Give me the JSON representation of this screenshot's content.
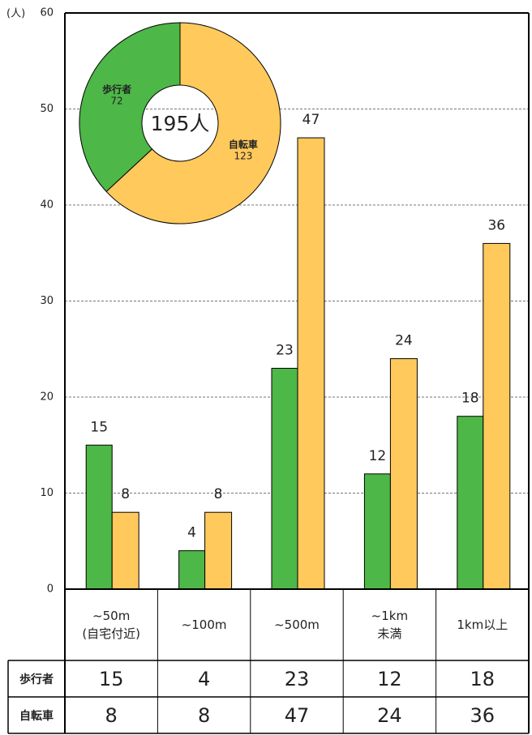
{
  "chart_data": [
    {
      "type": "bar",
      "ylabel": "(人)",
      "categories": [
        "~50m\n(自宅付近)",
        "~100m",
        "~500m",
        "~1km\n未満",
        "1km以上"
      ],
      "series": [
        {
          "name": "歩行者",
          "color": "#4db748",
          "values": [
            15,
            4,
            23,
            12,
            18
          ]
        },
        {
          "name": "自転車",
          "color": "#ffc95c",
          "values": [
            8,
            8,
            47,
            24,
            36
          ]
        }
      ],
      "ylim": [
        0,
        60
      ],
      "yticks": [
        0,
        10,
        20,
        30,
        40,
        50,
        60
      ],
      "grid": true
    },
    {
      "type": "pie",
      "center_label": "195人",
      "categories": [
        "歩行者",
        "自転車"
      ],
      "values": [
        72,
        123
      ],
      "colors": [
        "#4db748",
        "#ffc95c"
      ]
    }
  ]
}
